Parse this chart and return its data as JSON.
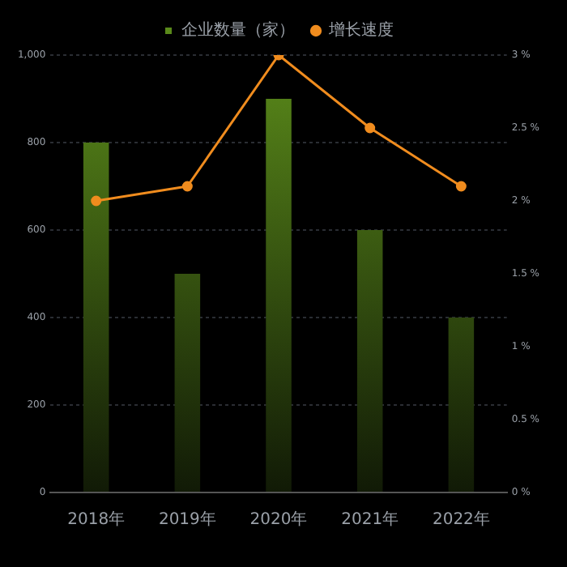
{
  "chart_data": {
    "type": "bar",
    "categories": [
      "2018年",
      "2019年",
      "2020年",
      "2021年",
      "2022年"
    ],
    "series": [
      {
        "name": "企业数量（家）",
        "color": "#5a8a1a",
        "values": [
          800,
          500,
          900,
          600,
          400
        ]
      },
      {
        "name": "增长速度",
        "type": "line",
        "axis": "y2",
        "color": "#f08c1e",
        "values": [
          2,
          2.1,
          3,
          2.5,
          2.1
        ]
      }
    ],
    "ylim": [
      0,
      1000
    ],
    "yticks": [
      0,
      200,
      400,
      600,
      800,
      {
        "value": 1000,
        "label": "1,000"
      }
    ],
    "y2lim": [
      0,
      3
    ],
    "y2ticks": [
      {
        "value": 0,
        "label": "0 %"
      },
      {
        "value": 0.5,
        "label": "0.5 %"
      },
      {
        "value": 1,
        "label": "1 %"
      },
      {
        "value": 1.5,
        "label": "1.5 %"
      },
      {
        "value": 2,
        "label": "2 %"
      },
      {
        "value": 2.5,
        "label": "2.5 %"
      },
      {
        "value": 3,
        "label": "3 %"
      }
    ],
    "grid": "y",
    "legend": "top",
    "marker": "circle",
    "line_style": "solid"
  }
}
